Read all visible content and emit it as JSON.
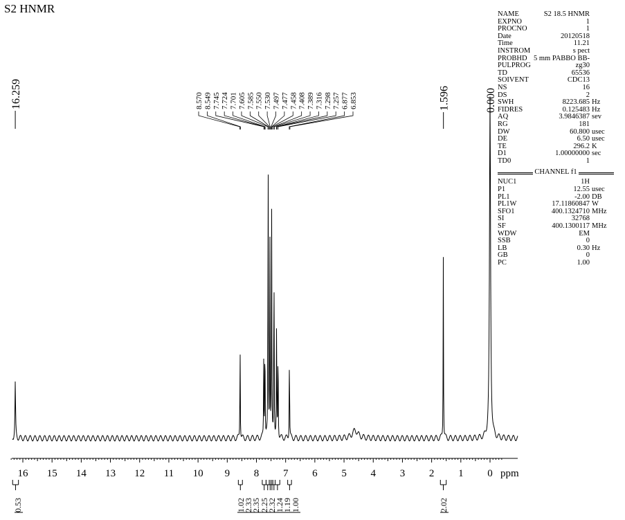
{
  "title": "S2 HNMR",
  "chart_data": {
    "type": "line",
    "xlabel": "ppm",
    "xlim": [
      16.3,
      -0.4
    ],
    "x_ticks": [
      "16",
      "15",
      "14",
      "13",
      "12",
      "11",
      "10",
      "9",
      "8",
      "7",
      "6",
      "5",
      "4",
      "3",
      "2",
      "1",
      "0"
    ],
    "peak_labels_single": [
      "16.259",
      "1.596",
      "0.000"
    ],
    "peak_labels_group": [
      "8.570",
      "8.549",
      "7.745",
      "7.724",
      "7.701",
      "7.605",
      "7.585",
      "7.550",
      "7.530",
      "7.497",
      "7.477",
      "7.458",
      "7.408",
      "7.389",
      "7.316",
      "7.298",
      "7.257",
      "6.877",
      "6.853"
    ],
    "peaks": [
      {
        "x": 16.26,
        "height": 0.14
      },
      {
        "x": 8.56,
        "height": 0.26
      },
      {
        "x": 7.75,
        "height": 0.2
      },
      {
        "x": 7.71,
        "height": 0.3
      },
      {
        "x": 7.6,
        "height": 0.78
      },
      {
        "x": 7.54,
        "height": 0.55
      },
      {
        "x": 7.48,
        "height": 0.59
      },
      {
        "x": 7.4,
        "height": 0.52
      },
      {
        "x": 7.31,
        "height": 0.3
      },
      {
        "x": 7.26,
        "height": 0.27
      },
      {
        "x": 6.87,
        "height": 0.24
      },
      {
        "x": 4.62,
        "height": 0.02
      },
      {
        "x": 1.6,
        "height": 0.47
      },
      {
        "x": 0.0,
        "height": 0.87
      }
    ],
    "integrations": [
      {
        "label": "0.53",
        "from": 16.35,
        "to": 16.15
      },
      {
        "label": "1.02",
        "from": 8.62,
        "to": 8.48
      },
      {
        "label": "2.33",
        "from": 7.8,
        "to": 7.67
      },
      {
        "label": "2.35",
        "from": 7.67,
        "to": 7.56
      },
      {
        "label": "2.25",
        "from": 7.56,
        "to": 7.5
      },
      {
        "label": "2.32",
        "from": 7.5,
        "to": 7.44
      },
      {
        "label": "1.24",
        "from": 7.44,
        "to": 7.36
      },
      {
        "label": "1.19",
        "from": 7.36,
        "to": 7.2
      },
      {
        "label": "1.00",
        "from": 6.93,
        "to": 6.8
      },
      {
        "label": "2.02",
        "from": 1.7,
        "to": 1.5
      }
    ]
  },
  "params": [
    {
      "k": "NAME",
      "v": "S2  18.5  HNMR",
      "u": ""
    },
    {
      "k": "EXPNO",
      "v": "1",
      "u": ""
    },
    {
      "k": "PROCNO",
      "v": "1",
      "u": ""
    },
    {
      "k": "Date",
      "v": "20120518",
      "u": ""
    },
    {
      "k": "Time",
      "v": "11.21",
      "u": ""
    },
    {
      "k": "INSTROM",
      "v": "s pect",
      "u": ""
    },
    {
      "k": "PROBHD",
      "v": "5 mm PABBO BB-",
      "u": ""
    },
    {
      "k": "PULPROG",
      "v": "zg30",
      "u": ""
    },
    {
      "k": "TD",
      "v": "65536",
      "u": ""
    },
    {
      "k": "SOIVENT",
      "v": "CDC13",
      "u": ""
    },
    {
      "k": "NS",
      "v": "16",
      "u": ""
    },
    {
      "k": "DS",
      "v": "2",
      "u": ""
    },
    {
      "k": "SWH",
      "v": "8223.685",
      "u": "Hz"
    },
    {
      "k": "FIDRES",
      "v": "0.125483",
      "u": "Hz"
    },
    {
      "k": "AQ",
      "v": "3.9846387",
      "u": "sev"
    },
    {
      "k": "RG",
      "v": "181",
      "u": ""
    },
    {
      "k": "DW",
      "v": "60.800",
      "u": "usec"
    },
    {
      "k": "DE",
      "v": "6.50",
      "u": "usec"
    },
    {
      "k": "TE",
      "v": "296.2",
      "u": "K"
    },
    {
      "k": "D1",
      "v": "1.00000000",
      "u": "sec"
    },
    {
      "k": "TD0",
      "v": "1",
      "u": ""
    }
  ],
  "channel_label": "CHANNEL f1",
  "params2": [
    {
      "k": "NUC1",
      "v": "1H",
      "u": ""
    },
    {
      "k": "P1",
      "v": "12.55",
      "u": "usec"
    },
    {
      "k": "PL1",
      "v": "-2.00",
      "u": "DB"
    },
    {
      "k": "PL1W",
      "v": "17.11860847",
      "u": "W"
    },
    {
      "k": "SFO1",
      "v": "400.1324710",
      "u": "MHz"
    },
    {
      "k": "SI",
      "v": "32768",
      "u": ""
    },
    {
      "k": "SF",
      "v": "400.1300117",
      "u": "MHz"
    },
    {
      "k": "WDW",
      "v": "EM",
      "u": ""
    },
    {
      "k": "SSB",
      "v": "0",
      "u": ""
    },
    {
      "k": "LB",
      "v": "0.30",
      "u": "Hz"
    },
    {
      "k": "GB",
      "v": "0",
      "u": ""
    },
    {
      "k": "PC",
      "v": "1.00",
      "u": ""
    }
  ]
}
